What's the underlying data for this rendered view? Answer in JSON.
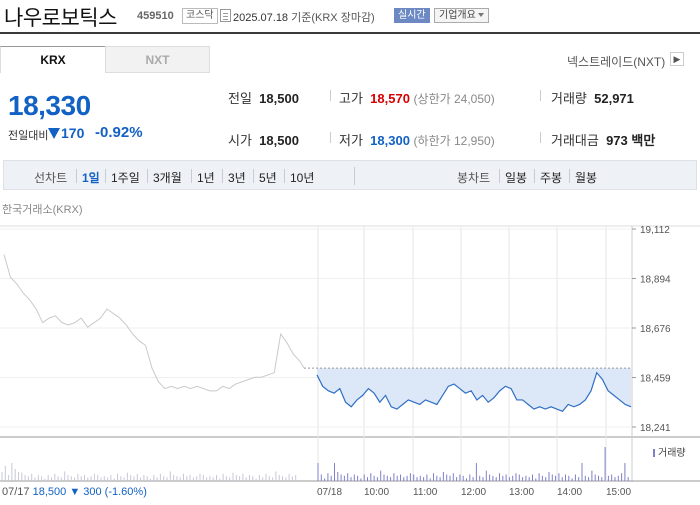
{
  "header": {
    "name": "나우로보틱스",
    "code": "459510",
    "market": "코스닥",
    "date": "2025.07.18",
    "date_suffix": "기준(KRX 장마감)",
    "realtime": "실시간",
    "overview": "기업개요"
  },
  "tabs": {
    "krx": "KRX",
    "nxt": "NXT"
  },
  "nxt_link": "넥스트레이드(NXT)",
  "price": {
    "current": "18,330",
    "prev_label": "전일대비",
    "change": "170",
    "change_pct": "-0.92%",
    "direction": "down"
  },
  "stats": {
    "prev_close_label": "전일",
    "prev_close": "18,500",
    "open_label": "시가",
    "open": "18,500",
    "high_label": "고가",
    "high": "18,570",
    "upper_limit": "(상한가 24,050)",
    "low_label": "저가",
    "low": "18,300",
    "lower_limit": "(하한가 12,950)",
    "volume_label": "거래량",
    "volume": "52,971",
    "amount_label": "거래대금",
    "amount": "973",
    "amount_unit": "백만"
  },
  "period": {
    "line_label": "선차트",
    "line_options": [
      "1일",
      "1주일",
      "3개월",
      "1년",
      "3년",
      "5년",
      "10년"
    ],
    "active": "1일",
    "candle_label": "봉차트",
    "candle_options": [
      "일봉",
      "주봉",
      "월봉"
    ]
  },
  "exchange_label": "한국거래소(KRX)",
  "chart_data": {
    "type": "line",
    "title": "",
    "y_ticks": [
      "19,112",
      "18,894",
      "18,676",
      "18,459",
      "18,241"
    ],
    "ylim": [
      18241,
      19112
    ],
    "x_ticks": [
      "07/17",
      "07/18",
      "10:00",
      "11:00",
      "12:00",
      "13:00",
      "14:00",
      "15:00"
    ],
    "series": [
      {
        "values": [
          19000,
          18900,
          18870,
          18830,
          18800,
          18760,
          18700,
          18720,
          18730,
          18700,
          18690,
          18700,
          18720,
          18680,
          18700,
          18720,
          18760,
          18740,
          18720,
          18690,
          18650,
          18620,
          18600,
          18500,
          18440,
          18410,
          18420,
          18410,
          18420,
          18410,
          18420,
          18410,
          18400,
          18400,
          18420,
          18410,
          18430,
          18440,
          18450,
          18460,
          18460,
          18470,
          18480,
          18650,
          18610,
          18560,
          18530
        ]
      },
      {
        "values": [
          18470,
          18420,
          18400,
          18390,
          18410,
          18350,
          18330,
          18360,
          18380,
          18410,
          18390,
          18350,
          18380,
          18330,
          18320,
          18340,
          18360,
          18350,
          18340,
          18360,
          18350,
          18340,
          18380,
          18420,
          18430,
          18410,
          18390,
          18400,
          18360,
          18380,
          18350,
          18370,
          18400,
          18420,
          18410,
          18360,
          18360,
          18340,
          18320,
          18330,
          18320,
          18330,
          18320,
          18310,
          18340,
          18330,
          18340,
          18360,
          18400,
          18480,
          18450,
          18400,
          18380,
          18360,
          18340,
          18330
        ]
      }
    ],
    "reference_price": 18500,
    "legend_volume": "거래량"
  },
  "footer": {
    "date": "07/17",
    "price": "18,500",
    "change": "▼ 300",
    "change_pct": "(-1.60%)"
  }
}
